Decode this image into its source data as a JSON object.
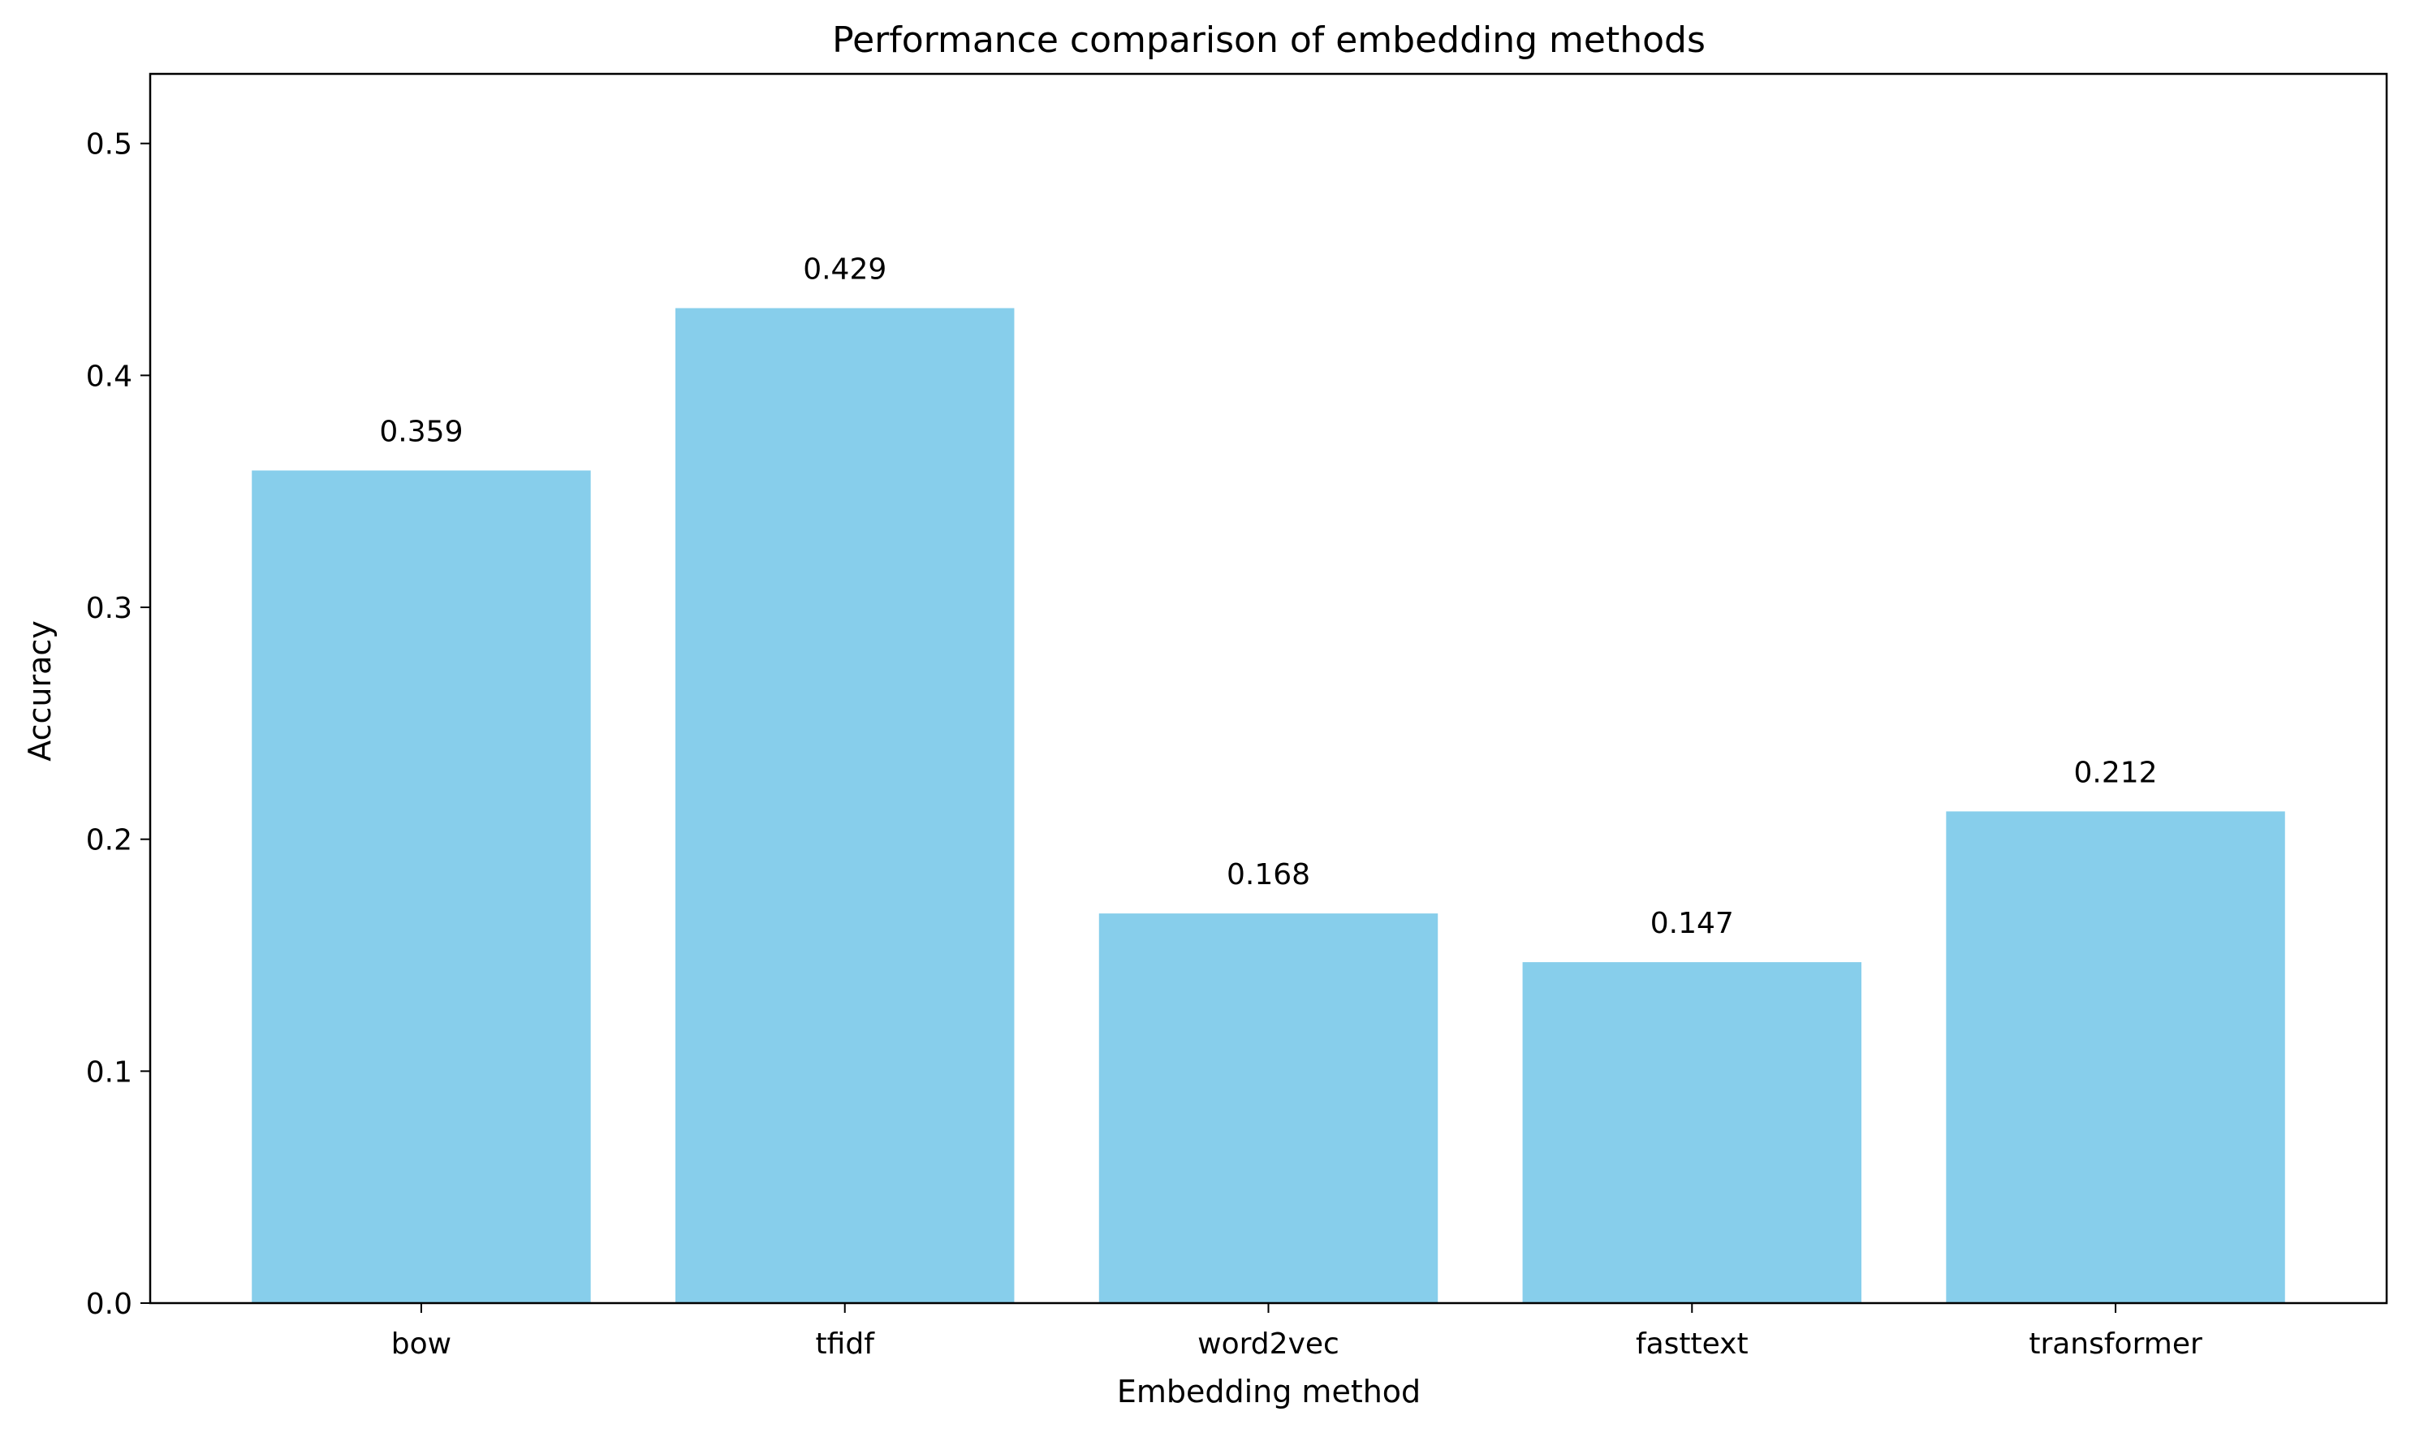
{
  "chart_data": {
    "type": "bar",
    "title": "Performance comparison of embedding methods",
    "xlabel": "Embedding method",
    "ylabel": "Accuracy",
    "categories": [
      "bow",
      "tfidf",
      "word2vec",
      "fasttext",
      "transformer"
    ],
    "values": [
      0.359,
      0.429,
      0.168,
      0.147,
      0.212
    ],
    "value_labels": [
      "0.359",
      "0.429",
      "0.168",
      "0.147",
      "0.212"
    ],
    "ylim": [
      0,
      0.53
    ],
    "yticks": [
      0.0,
      0.1,
      0.2,
      0.3,
      0.4,
      0.5
    ],
    "ytick_labels": [
      "0.0",
      "0.1",
      "0.2",
      "0.3",
      "0.4",
      "0.5"
    ],
    "bar_color": "#87CEEB",
    "grid": false,
    "legend": false
  }
}
